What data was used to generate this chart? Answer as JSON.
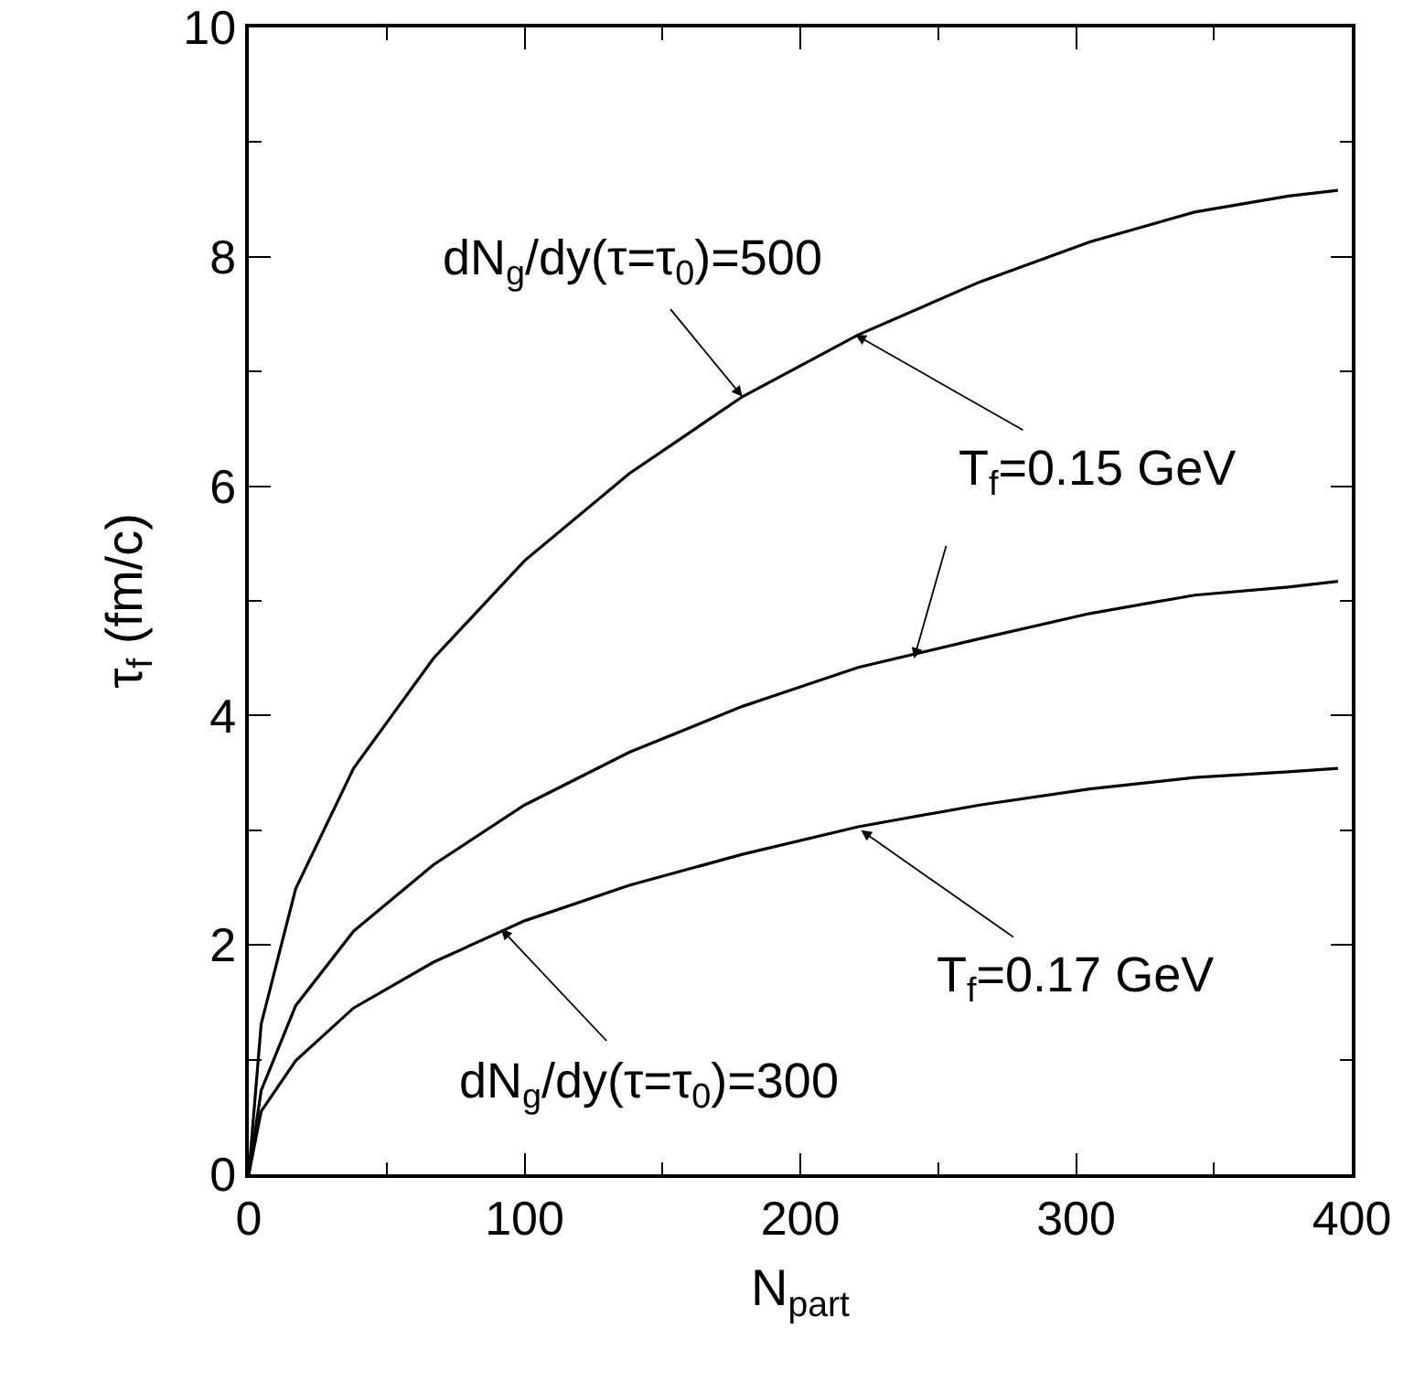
{
  "chart_data": {
    "type": "line",
    "xlabel": "N$_{part}$",
    "ylabel": "τ$_{f}$ (fm/c)",
    "xlim": [
      0,
      400
    ],
    "ylim": [
      0,
      10
    ],
    "xticks": [
      0,
      {
        "value": 50,
        "label": null
      },
      100,
      {
        "value": 150,
        "label": null
      },
      200,
      {
        "value": 250,
        "label": null
      },
      300,
      {
        "value": 350,
        "label": null
      },
      400
    ],
    "yticks": [
      0,
      {
        "value": 1,
        "label": null
      },
      2,
      {
        "value": 3,
        "label": null
      },
      4,
      {
        "value": 5,
        "label": null
      },
      6,
      {
        "value": 7,
        "label": null
      },
      8,
      {
        "value": 9,
        "label": null
      },
      10
    ],
    "grid": false,
    "marker": "none",
    "line_style": "solid",
    "x": [
      0,
      4.5,
      17,
      38,
      67,
      100,
      138,
      179,
      221,
      265,
      305,
      343,
      377,
      395
    ],
    "series": [
      {
        "color": "#000000",
        "values": [
          0,
          1.31,
          2.49,
          3.54,
          4.5,
          5.35,
          6.11,
          6.78,
          7.32,
          7.78,
          8.13,
          8.39,
          8.53,
          8.58
        ]
      },
      {
        "color": "#000000",
        "values": [
          0,
          0.73,
          1.47,
          2.12,
          2.7,
          3.22,
          3.68,
          4.08,
          4.42,
          4.67,
          4.89,
          5.05,
          5.12,
          5.17
        ]
      },
      {
        "color": "#000000",
        "values": [
          0,
          0.55,
          0.99,
          1.45,
          1.85,
          2.21,
          2.52,
          2.79,
          3.03,
          3.22,
          3.36,
          3.46,
          3.51,
          3.54
        ]
      }
    ],
    "annotations": [
      {
        "text": "dN$_{g}$/dy(τ=τ$_{0}$)=500",
        "x": 179,
        "y": 6.78
      },
      {
        "text": "T$_{f}$=0.15 GeV",
        "x": 220,
        "y": 7.32
      },
      {
        "text": "T$_{f}$=0.17 GeV",
        "x": 222,
        "y": 3.0
      },
      {
        "text": "dN$_{g}$/dy(τ=τ$_{0}$)=300",
        "x": 91.5,
        "y": 2.14
      }
    ]
  }
}
